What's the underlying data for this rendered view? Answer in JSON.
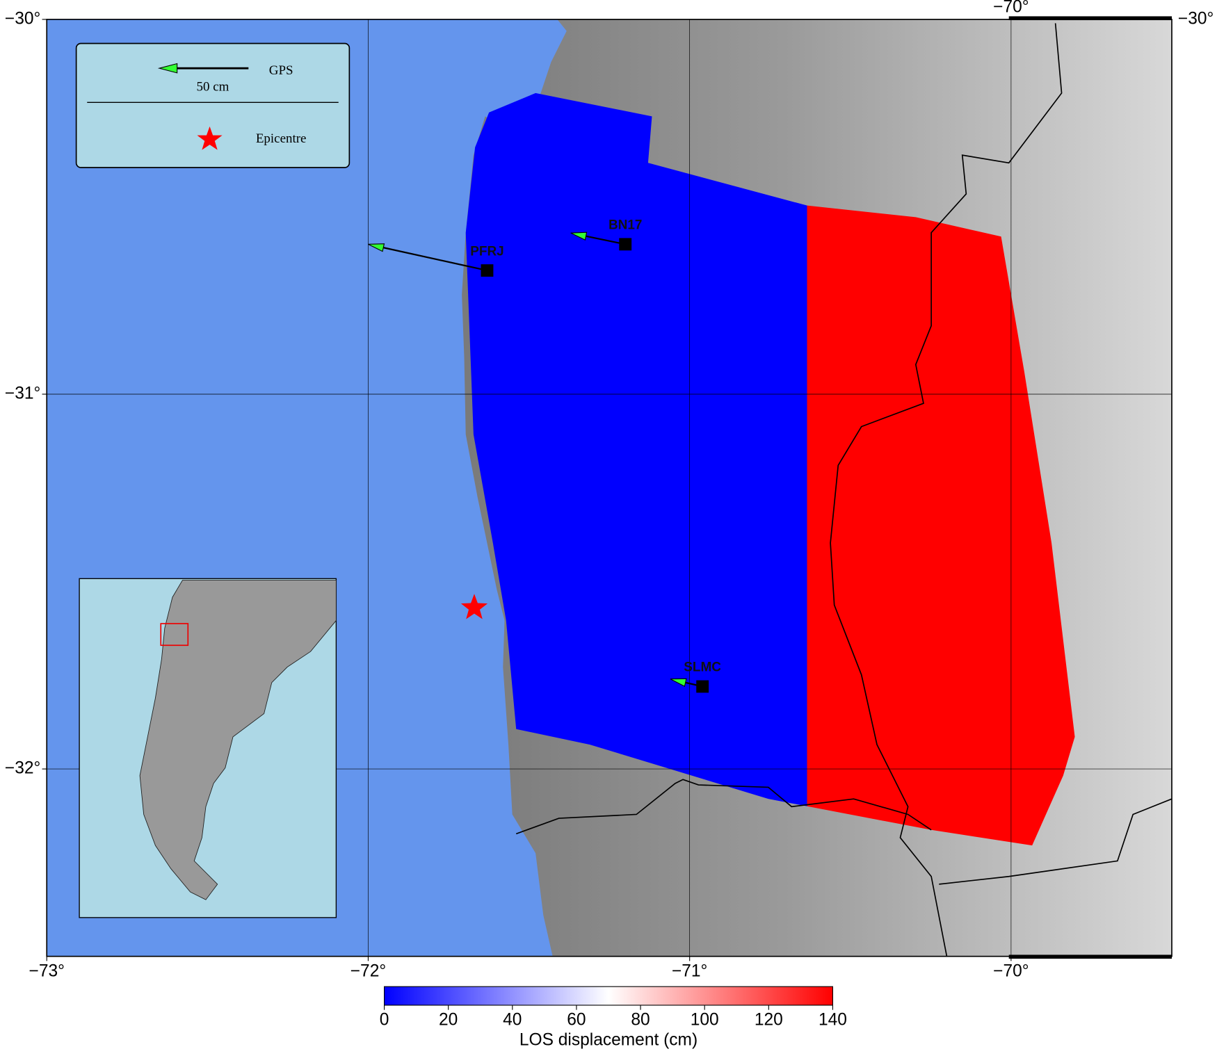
{
  "chart_data": {
    "type": "map",
    "xlim": [
      -73,
      -69.5
    ],
    "ylim": [
      -32.5,
      -30
    ],
    "xticks": [
      {
        "value": -73,
        "label": "−73°"
      },
      {
        "value": -72,
        "label": "−72°"
      },
      {
        "value": -71,
        "label": "−71°"
      },
      {
        "value": -70,
        "label": "−70°"
      }
    ],
    "yticks": [
      {
        "value": -30,
        "label": "−30°"
      },
      {
        "value": -31,
        "label": "−31°"
      },
      {
        "value": -32,
        "label": "−32°"
      }
    ],
    "grid": true,
    "legend": {
      "gps_label": "GPS",
      "scale_label": "50 cm",
      "epicentre_label": "Epicentre"
    },
    "epicentre": {
      "lon": -71.67,
      "lat": -31.57,
      "color": "#ff0000"
    },
    "stations": [
      {
        "name": "PFRJ",
        "lon": -71.63,
        "lat": -30.67,
        "vector_end_lon": -72.0,
        "vector_end_lat": -30.6
      },
      {
        "name": "BN17",
        "lon": -71.2,
        "lat": -30.6,
        "vector_end_lon": -71.37,
        "vector_end_lat": -30.57
      },
      {
        "name": "SLMC",
        "lon": -70.96,
        "lat": -31.78,
        "vector_end_lon": -71.06,
        "vector_end_lat": -31.76
      }
    ],
    "colorbar": {
      "label": "LOS displacement (cm)",
      "lim": [
        0,
        140
      ],
      "ticks": [
        0,
        20,
        40,
        60,
        80,
        100,
        120,
        140
      ],
      "colors": [
        "#0000ff",
        "#ffffff",
        "#ff0000"
      ]
    }
  }
}
